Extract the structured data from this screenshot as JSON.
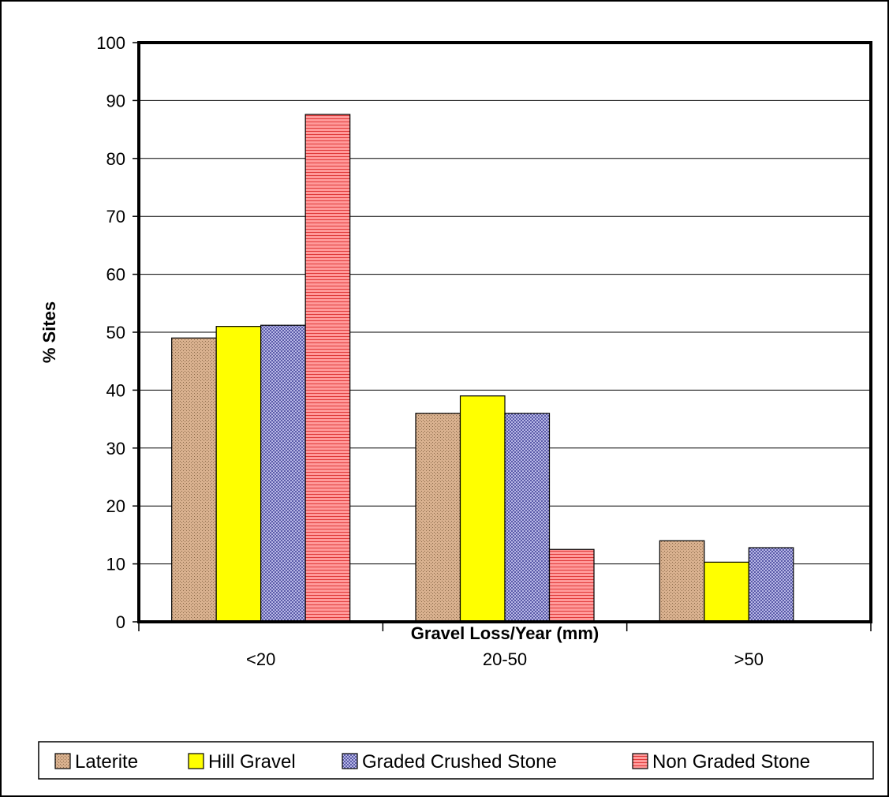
{
  "chart_data": {
    "type": "bar",
    "title": "",
    "xlabel": "Gravel Loss/Year (mm)",
    "ylabel": "% Sites",
    "ylim": [
      0,
      100
    ],
    "yticks": [
      "0",
      "10",
      "20",
      "30",
      "40",
      "50",
      "60",
      "70",
      "80",
      "90",
      "100"
    ],
    "grid": true,
    "legend_position": "bottom",
    "categories": [
      "<20",
      "20-50",
      ">50"
    ],
    "series": [
      {
        "name": "Laterite",
        "color": "#D9B18F",
        "values": [
          49,
          36,
          14
        ]
      },
      {
        "name": "Hill Gravel",
        "color": "#FFFF00",
        "values": [
          51,
          39,
          10.3
        ]
      },
      {
        "name": "Graded Crushed Stone",
        "color": "#9999CC",
        "values": [
          51.2,
          36,
          12.8
        ]
      },
      {
        "name": "Non Graded Stone",
        "color": "#FF8080",
        "values": [
          87.6,
          12.5,
          0
        ]
      }
    ]
  }
}
